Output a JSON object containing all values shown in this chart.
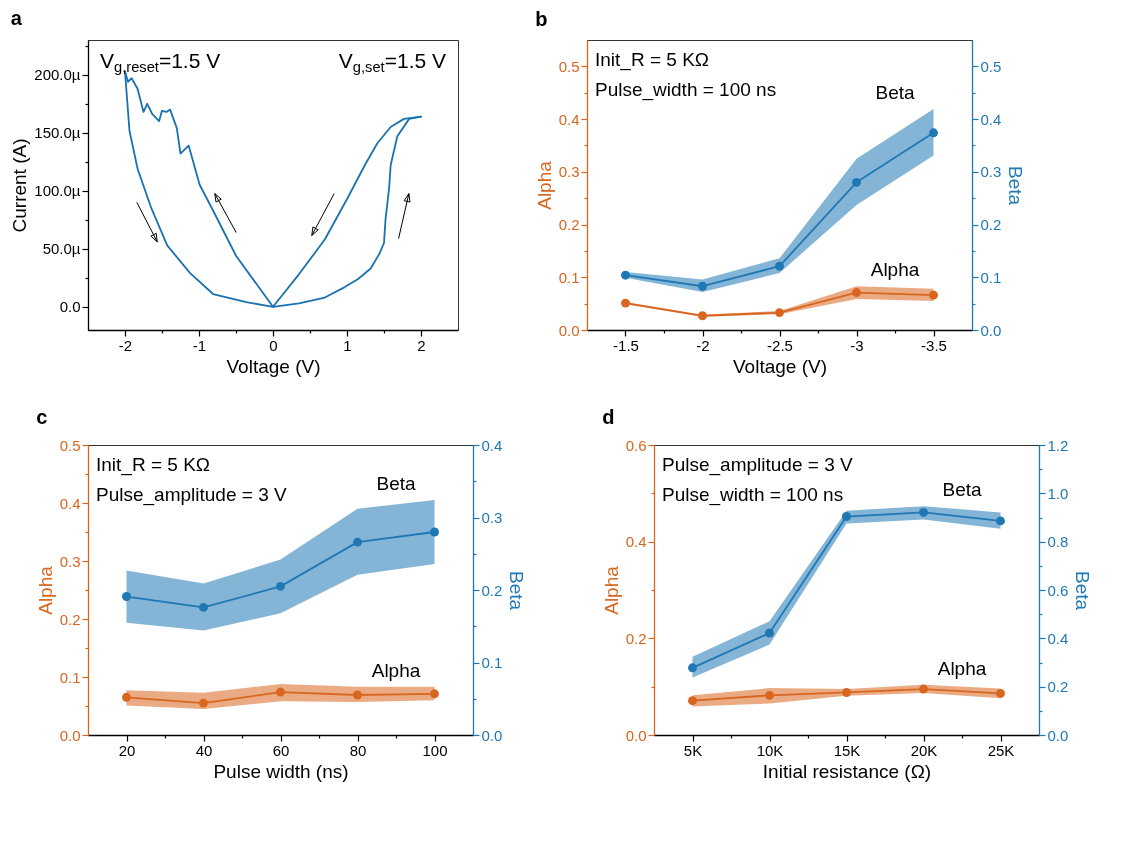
{
  "chart_data": [
    {
      "type": "line",
      "title": "a",
      "xlabel": "Voltage (V)",
      "ylabel": "Current (A)",
      "annotations": [
        "V$_{g,reset}$=1.5 V",
        "V$_{g,set}$=1.5 V"
      ],
      "xlim": [
        -2.5,
        2.5
      ],
      "xticks": [
        -2,
        {
          "value": -1.5,
          "label": null
        },
        -1,
        {
          "value": -0.5,
          "label": null
        },
        0,
        {
          "value": 0.5,
          "label": null
        },
        1,
        {
          "value": 1.5,
          "label": null
        },
        2
      ],
      "ylim": [
        -20,
        230
      ],
      "yticks": [
        {
          "value": 0,
          "label": "0.0"
        },
        {
          "value": 25,
          "label": null
        },
        {
          "value": 50,
          "label": "50.0µ"
        },
        {
          "value": 75,
          "label": null
        },
        {
          "value": 100,
          "label": "100.0µ"
        },
        {
          "value": 125,
          "label": null
        },
        {
          "value": 150,
          "label": "150.0µ"
        },
        {
          "value": 175,
          "label": null
        },
        {
          "value": 200,
          "label": "200.0µ"
        },
        {
          "value": 225,
          "label": null
        }
      ],
      "series": [
        {
          "color": "#1a72b0",
          "x": [
            -2.0,
            -1.96,
            -1.91,
            -1.83,
            -1.75,
            -1.7,
            -1.63,
            -1.54,
            -1.5,
            -1.44,
            -1.39,
            -1.3,
            -1.25,
            -1.14,
            -0.99,
            -0.81,
            -0.5,
            0,
            0.35,
            0.7,
            1.01,
            1.24,
            1.41,
            1.59,
            1.77,
            2.0
          ],
          "values": [
            203,
            194,
            197,
            188,
            168,
            175,
            166,
            160,
            169,
            168,
            170,
            154,
            132,
            139,
            105,
            83,
            44,
            0,
            28,
            58,
            94,
            122,
            141,
            155,
            162,
            164
          ]
        },
        {
          "color": "#1a72b0",
          "x": [
            -2.0,
            -1.94,
            -1.83,
            -1.65,
            -1.43,
            -1.12,
            -0.81,
            -0.36,
            0,
            0.35,
            0.7,
            0.97,
            1.15,
            1.32,
            1.44,
            1.5,
            1.52,
            1.57,
            1.59,
            1.68,
            1.84,
            2.0
          ],
          "values": [
            203,
            152,
            119,
            86,
            53,
            29,
            11,
            4,
            0,
            3,
            8,
            17,
            24,
            33,
            46,
            55,
            75,
            103,
            122,
            147,
            162,
            164
          ]
        }
      ]
    },
    {
      "type": "line",
      "title": "b",
      "xlabel": "Voltage (V)",
      "ylabel": "Alpha",
      "y2label": "Beta",
      "marker": "circle",
      "annotations": [
        "Init_R = 5 KΩ",
        "Pulse_width = 100 ns"
      ],
      "x": [
        -1.5,
        -2,
        -2.5,
        -3,
        -3.5
      ],
      "xlim": [
        -1.25,
        -3.75
      ],
      "xticks": [
        -1.5,
        {
          "value": -1.75,
          "label": null
        },
        -2,
        {
          "value": -2.25,
          "label": null
        },
        -2.5,
        {
          "value": -2.75,
          "label": null
        },
        -3,
        {
          "value": -3.25,
          "label": null
        },
        -3.5
      ],
      "ylim": [
        0,
        0.55
      ],
      "yticks": [
        {
          "value": 0,
          "label": "0.0"
        },
        {
          "value": 0.05,
          "label": null
        },
        0.1,
        {
          "value": 0.15,
          "label": null
        },
        0.2,
        {
          "value": 0.25,
          "label": null
        },
        0.3,
        {
          "value": 0.35,
          "label": null
        },
        0.4,
        {
          "value": 0.45,
          "label": null
        },
        0.5
      ],
      "y2lim": [
        0,
        0.55
      ],
      "y2ticks": [
        {
          "value": 0,
          "label": "0.0"
        },
        {
          "value": 0.05,
          "label": null
        },
        0.1,
        {
          "value": 0.15,
          "label": null
        },
        0.2,
        {
          "value": 0.25,
          "label": null
        },
        0.3,
        {
          "value": 0.35,
          "label": null
        },
        0.4,
        {
          "value": 0.45,
          "label": null
        },
        0.5
      ],
      "series": [
        {
          "name": "Alpha",
          "color": "#d9661f",
          "values": [
            0.051,
            0.027,
            0.033,
            0.071,
            0.066
          ],
          "lower": [
            0.049,
            0.025,
            0.03,
            0.059,
            0.055
          ],
          "upper": [
            0.053,
            0.029,
            0.036,
            0.083,
            0.078
          ]
        },
        {
          "name": "Beta",
          "color": "#1f78b4",
          "axis": "y2",
          "values": [
            0.104,
            0.083,
            0.121,
            0.28,
            0.374
          ],
          "lower": [
            0.099,
            0.072,
            0.108,
            0.237,
            0.331
          ],
          "upper": [
            0.11,
            0.096,
            0.136,
            0.325,
            0.419
          ]
        }
      ]
    },
    {
      "type": "line",
      "title": "c",
      "xlabel": "Pulse width (ns)",
      "ylabel": "Alpha",
      "y2label": "Beta",
      "marker": "circle",
      "annotations": [
        "Init_R = 5 KΩ",
        "Pulse_amplitude = 3 V"
      ],
      "x": [
        20,
        40,
        60,
        80,
        100
      ],
      "xlim": [
        10,
        110
      ],
      "xticks": [
        20,
        {
          "value": 30,
          "label": null
        },
        40,
        {
          "value": 50,
          "label": null
        },
        60,
        {
          "value": 70,
          "label": null
        },
        80,
        {
          "value": 90,
          "label": null
        },
        100
      ],
      "ylim": [
        0,
        0.5
      ],
      "yticks": [
        {
          "value": 0,
          "label": "0.0"
        },
        {
          "value": 0.05,
          "label": null
        },
        0.1,
        {
          "value": 0.15,
          "label": null
        },
        0.2,
        {
          "value": 0.25,
          "label": null
        },
        0.3,
        {
          "value": 0.35,
          "label": null
        },
        0.4,
        {
          "value": 0.45,
          "label": null
        },
        0.5
      ],
      "y2lim": [
        0,
        0.4
      ],
      "y2ticks": [
        {
          "value": 0,
          "label": "0.0"
        },
        {
          "value": 0.05,
          "label": null
        },
        0.1,
        {
          "value": 0.15,
          "label": null
        },
        0.2,
        {
          "value": 0.25,
          "label": null
        },
        0.3,
        {
          "value": 0.35,
          "label": null
        },
        0.4
      ],
      "series": [
        {
          "name": "Alpha",
          "color": "#d9661f",
          "values": [
            0.065,
            0.055,
            0.074,
            0.069,
            0.071
          ],
          "lower": [
            0.051,
            0.045,
            0.058,
            0.057,
            0.06
          ],
          "upper": [
            0.077,
            0.073,
            0.088,
            0.083,
            0.083
          ]
        },
        {
          "name": "Beta",
          "color": "#1f78b4",
          "axis": "y2",
          "values": [
            0.191,
            0.176,
            0.205,
            0.266,
            0.28
          ],
          "lower": [
            0.155,
            0.144,
            0.168,
            0.221,
            0.236
          ],
          "upper": [
            0.227,
            0.209,
            0.242,
            0.312,
            0.324
          ]
        }
      ]
    },
    {
      "type": "line",
      "title": "d",
      "xlabel": "Initial resistance (Ω)",
      "ylabel": "Alpha",
      "y2label": "Beta",
      "marker": "circle",
      "annotations": [
        "Pulse_amplitude = 3 V",
        "Pulse_width = 100 ns"
      ],
      "x": [
        5000,
        10000,
        15000,
        20000,
        25000
      ],
      "xlim": [
        2500,
        27500
      ],
      "xticks": [
        {
          "value": 5000,
          "label": "5K"
        },
        {
          "value": 7500,
          "label": null
        },
        {
          "value": 10000,
          "label": "10K"
        },
        {
          "value": 12500,
          "label": null
        },
        {
          "value": 15000,
          "label": "15K"
        },
        {
          "value": 17500,
          "label": null
        },
        {
          "value": 20000,
          "label": "20K"
        },
        {
          "value": 22500,
          "label": null
        },
        {
          "value": 25000,
          "label": "25K"
        }
      ],
      "ylim": [
        0,
        0.6
      ],
      "yticks": [
        {
          "value": 0,
          "label": "0.0"
        },
        {
          "value": 0.1,
          "label": null
        },
        0.2,
        {
          "value": 0.3,
          "label": null
        },
        0.4,
        {
          "value": 0.5,
          "label": null
        },
        0.6
      ],
      "y2lim": [
        0,
        1.2
      ],
      "y2ticks": [
        {
          "value": 0,
          "label": "0.0"
        },
        {
          "value": 0.1,
          "label": null
        },
        0.2,
        {
          "value": 0.3,
          "label": null
        },
        0.4,
        {
          "value": 0.5,
          "label": null
        },
        0.6,
        {
          "value": 0.7,
          "label": null
        },
        0.8,
        {
          "value": 0.9,
          "label": null
        },
        {
          "value": 1,
          "label": "1.0"
        },
        {
          "value": 1.1,
          "label": null
        },
        1.2
      ],
      "series": [
        {
          "name": "Alpha",
          "color": "#d9661f",
          "values": [
            0.071,
            0.082,
            0.088,
            0.095,
            0.086
          ],
          "lower": [
            0.059,
            0.065,
            0.081,
            0.087,
            0.076
          ],
          "upper": [
            0.082,
            0.097,
            0.095,
            0.104,
            0.096
          ]
        },
        {
          "name": "Beta",
          "color": "#1f78b4",
          "axis": "y2",
          "values": [
            0.278,
            0.422,
            0.904,
            0.921,
            0.886
          ],
          "lower": [
            0.238,
            0.374,
            0.875,
            0.892,
            0.853
          ],
          "upper": [
            0.324,
            0.471,
            0.928,
            0.947,
            0.921
          ]
        }
      ]
    }
  ]
}
